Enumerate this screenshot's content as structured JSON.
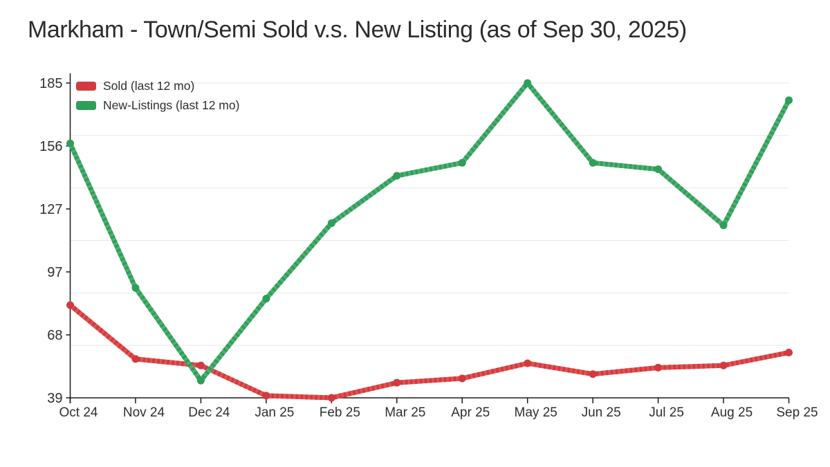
{
  "title": "Markham - Town/Semi Sold v.s. New Listing (as of Sep 30, 2025)",
  "chart_data": {
    "type": "line",
    "title": "Markham - Town/Semi Sold v.s. New Listing (as of Sep 30, 2025)",
    "categories": [
      "Oct 24",
      "Nov 24",
      "Dec 24",
      "Jan 25",
      "Feb 25",
      "Mar 25",
      "Apr 25",
      "May 25",
      "Jun 25",
      "Jul 25",
      "Aug 25",
      "Sep 25"
    ],
    "series": [
      {
        "id": "sold",
        "name": "Sold (last 12 mo)",
        "color": "#e25353",
        "color_dark": "#d23a3e",
        "values": [
          82,
          57,
          54,
          40,
          39,
          46,
          48,
          55,
          50,
          53,
          54,
          60
        ]
      },
      {
        "id": "new-listings",
        "name": "New-Listings (last 12 mo)",
        "color": "#4fb073",
        "color_dark": "#2f9e58",
        "values": [
          157,
          90,
          47,
          85,
          120,
          142,
          148,
          185,
          148,
          145,
          119,
          177
        ]
      }
    ],
    "xlabel": "",
    "ylabel": "",
    "ylim": [
      39,
      185
    ],
    "ytick_labels": [
      "39",
      "68",
      "97",
      "127",
      "156",
      "185"
    ],
    "grid": "horizontal",
    "grid_divisions": 6,
    "legend_position": "top-left",
    "marker": "circle",
    "axis_color": "#1a1a1a",
    "gridline_color": "#e7e7e7"
  }
}
